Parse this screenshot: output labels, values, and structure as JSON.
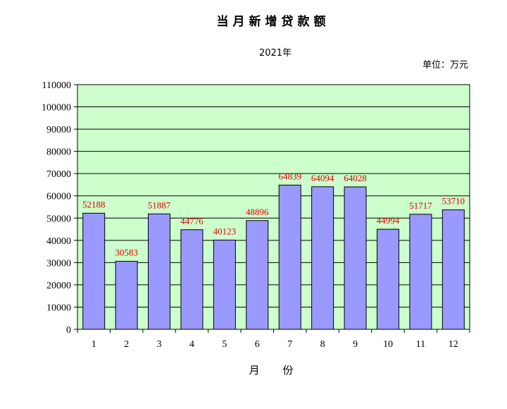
{
  "chart_data": {
    "type": "bar",
    "title": "当月新增贷款额",
    "subtitle": "2021年",
    "unit_label": "单位：万元",
    "xlabel": "月  份",
    "ylabel": "",
    "categories": [
      "1",
      "2",
      "3",
      "4",
      "5",
      "6",
      "7",
      "8",
      "9",
      "10",
      "11",
      "12"
    ],
    "values": [
      52188,
      30583,
      51887,
      44776,
      40123,
      48896,
      64839,
      64094,
      64028,
      44994,
      51717,
      53710
    ],
    "ylim": [
      0,
      110000
    ],
    "yticks": [
      0,
      10000,
      20000,
      30000,
      40000,
      50000,
      60000,
      70000,
      80000,
      90000,
      100000,
      110000
    ],
    "grid": true,
    "data_labels": true,
    "colors": {
      "plot_background": "#ccffcc",
      "bar_fill": "#9999ff",
      "bar_stroke": "#000000",
      "data_label": "#e00000",
      "gridline": "#000000"
    }
  }
}
